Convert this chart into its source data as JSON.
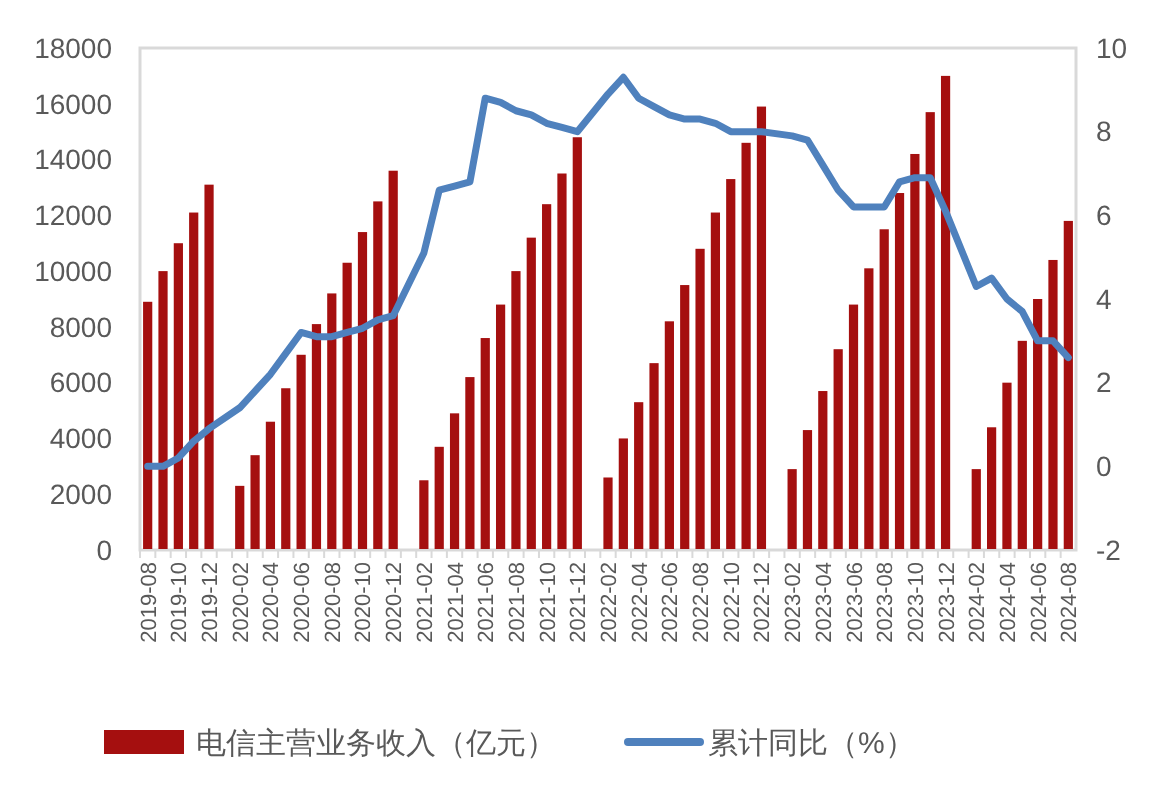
{
  "chart_data": {
    "type": "bar",
    "categories": [
      "2019-08",
      null,
      "2019-10",
      null,
      "2019-12",
      null,
      "2020-02",
      null,
      "2020-04",
      null,
      "2020-06",
      null,
      "2020-08",
      null,
      "2020-10",
      null,
      "2020-12",
      null,
      "2021-02",
      null,
      "2021-04",
      null,
      "2021-06",
      null,
      "2021-08",
      null,
      "2021-10",
      null,
      "2021-12",
      null,
      "2022-02",
      null,
      "2022-04",
      null,
      "2022-06",
      null,
      "2022-08",
      null,
      "2022-10",
      null,
      "2022-12",
      null,
      "2023-02",
      null,
      "2023-04",
      null,
      "2023-06",
      null,
      "2023-08",
      null,
      "2023-10",
      null,
      "2023-12",
      null,
      "2024-02",
      null,
      "2024-04",
      null,
      "2024-06",
      null,
      "2024-08"
    ],
    "series": [
      {
        "name": "电信主营业务收入（亿元）",
        "color": "#a50f0f",
        "values": [
          8900,
          10000,
          11000,
          12100,
          13100,
          null,
          2300,
          3400,
          4600,
          5800,
          7000,
          8100,
          9200,
          10300,
          11400,
          12500,
          13600,
          null,
          2500,
          3700,
          4900,
          6200,
          7600,
          8800,
          10000,
          11200,
          12400,
          13500,
          14800,
          null,
          2600,
          4000,
          5300,
          6700,
          8200,
          9500,
          10800,
          12100,
          13300,
          14600,
          15900,
          null,
          2900,
          4300,
          5700,
          7200,
          8800,
          10100,
          11500,
          12800,
          14200,
          15700,
          17000,
          null,
          2900,
          4400,
          6000,
          7500,
          9000,
          10400,
          11800
        ]
      },
      {
        "name": "累计同比（%）",
        "type": "line",
        "axis": "y2",
        "color": "#4f81bd",
        "values": [
          0.0,
          0.0,
          0.2,
          0.6,
          0.9,
          null,
          1.4,
          1.8,
          2.2,
          2.7,
          3.2,
          3.1,
          3.1,
          3.2,
          3.3,
          3.5,
          3.6,
          null,
          5.1,
          6.6,
          6.7,
          6.8,
          8.8,
          8.7,
          8.5,
          8.4,
          8.2,
          8.1,
          8.0,
          null,
          8.9,
          9.3,
          8.8,
          8.6,
          8.4,
          8.3,
          8.3,
          8.2,
          8.0,
          8.0,
          8.0,
          null,
          7.9,
          7.8,
          7.2,
          6.6,
          6.2,
          6.2,
          6.2,
          6.8,
          6.9,
          6.9,
          6.1,
          null,
          4.3,
          4.5,
          4.0,
          3.7,
          3.0,
          3.0,
          2.6
        ]
      }
    ],
    "ylim": [
      0,
      18000
    ],
    "yticks": [
      0,
      2000,
      4000,
      6000,
      8000,
      10000,
      12000,
      14000,
      16000,
      18000
    ],
    "y2lim": [
      -2,
      10
    ],
    "y2ticks": [
      -2,
      0,
      2,
      4,
      6,
      8,
      10
    ],
    "grid": false,
    "legend": "bottom",
    "marker": "none",
    "line_style": "solid"
  }
}
